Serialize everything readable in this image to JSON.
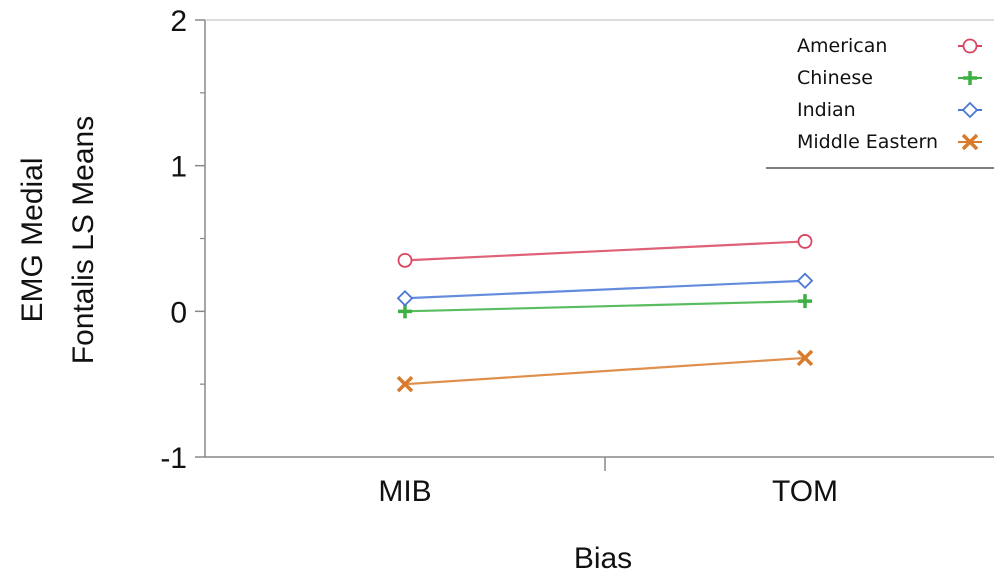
{
  "chart_data": {
    "type": "line",
    "title": "",
    "xlabel": "Bias",
    "ylabel_lines": [
      "EMG Medial",
      "Fontalis LS Means"
    ],
    "categories": [
      "MIB",
      "TOM"
    ],
    "ylim": [
      -1,
      2
    ],
    "yticks": [
      -1,
      0,
      1,
      2
    ],
    "legend_position": "top-right",
    "grid": false,
    "series": [
      {
        "name": "American",
        "values": [
          0.35,
          0.48
        ],
        "color": "#d9455f",
        "marker": "circle-open"
      },
      {
        "name": "Chinese",
        "values": [
          0.0,
          0.07
        ],
        "color": "#3cb043",
        "marker": "plus"
      },
      {
        "name": "Indian",
        "values": [
          0.09,
          0.21
        ],
        "color": "#4a78d6",
        "marker": "diamond-open"
      },
      {
        "name": "Middle Eastern",
        "values": [
          -0.5,
          -0.32
        ],
        "color": "#d97b2b",
        "marker": "x"
      }
    ]
  }
}
